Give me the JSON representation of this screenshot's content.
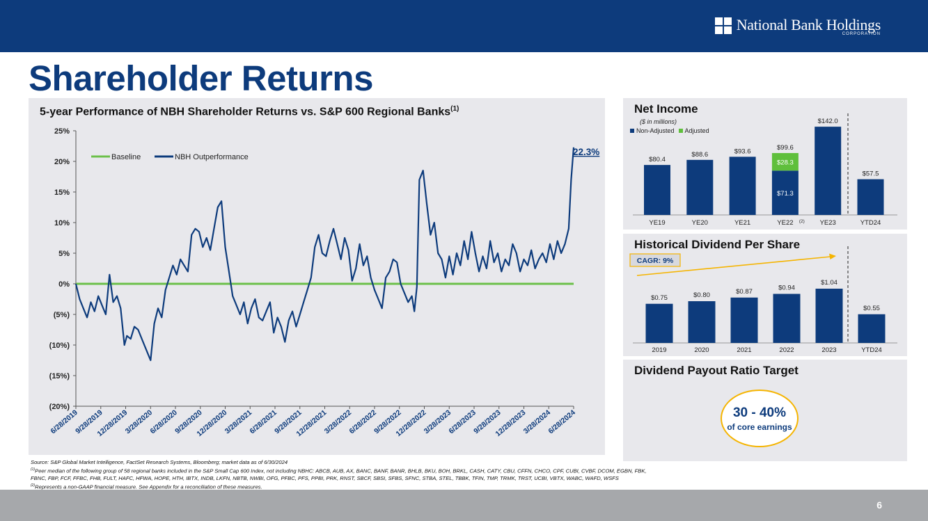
{
  "header": {
    "logo_text": "National Bank Holdings",
    "logo_sub": "CORPORATION",
    "page_title": "Shareholder Returns"
  },
  "main_panel": {
    "title": "5-year Performance of NBH Shareholder Returns vs. S&P 600 Regional Banks",
    "title_sup": "(1)"
  },
  "net_income": {
    "title": "Net Income",
    "subtitle": "($ in millions)",
    "legend_non_adjusted": "Non-Adjusted",
    "legend_adjusted": "Adjusted",
    "ye22_note": "(2)"
  },
  "dividend": {
    "title": "Historical Dividend Per Share",
    "cagr_label": "CAGR: 9%"
  },
  "payout": {
    "title": "Dividend Payout Ratio Target",
    "value": "30 - 40%",
    "caption": "of core earnings"
  },
  "footnotes": {
    "source": "Source: S&P Global Market Intelligence, FactSet Research Systems, Bloomberg; market data as of 6/30/2024",
    "note1_marker": "(1)",
    "note1": "Peer median of the following group of 58 regional banks included in the S&P Small Cap 600 Index, not including NBHC: ABCB, AUB, AX, BANC, BANF, BANR, BHLB, BKU, BOH, BRKL, CASH, CATY, CBU, CFFN, CHCO, CPF, CUBI, CVBF, DCOM, EGBN, FBK,",
    "note1_cont": "FBNC, FBP, FCF, FFBC, FHB, FULT, HAFC, HFWA, HOPE, HTH, IBTX, INDB, LKFN, NBTB, NWBI, OFG, PFBC, PFS, PPBI, PRK, RNST, SBCF, SBSI, SFBS, SFNC, STBA, STEL, TBBK, TFIN, TMP, TRMK, TRST, UCBI, VBTX, WABC, WAFD, WSFS",
    "note2_marker": "(2)",
    "note2": "Represents a non-GAAP financial measure.  See Appendix for a reconciliation of these measures."
  },
  "page_number": "6",
  "colors": {
    "navy": "#0d3b7c",
    "green": "#6cc04a",
    "adjusted_green": "#5fbf3c",
    "gold": "#f5b400"
  },
  "chart_data": [
    {
      "type": "line",
      "title": "5-year Performance of NBH Shareholder Returns vs. S&P 600 Regional Banks",
      "ylim": [
        -20,
        25
      ],
      "y_ticks": [
        25,
        20,
        15,
        10,
        5,
        0,
        -5,
        -10,
        -15,
        -20
      ],
      "y_tick_labels": [
        "25%",
        "20%",
        "15%",
        "10%",
        "5%",
        "0%",
        "(5%)",
        "(10%)",
        "(15%)",
        "(20%)"
      ],
      "x_tick_labels": [
        "6/28/2019",
        "9/28/2019",
        "12/28/2019",
        "3/28/2020",
        "6/28/2020",
        "9/28/2020",
        "12/28/2020",
        "3/28/2021",
        "6/28/2021",
        "9/28/2021",
        "12/28/2021",
        "3/28/2022",
        "6/28/2022",
        "9/28/2022",
        "12/28/2022",
        "3/28/2023",
        "6/28/2023",
        "9/28/2023",
        "12/28/2023",
        "3/28/2024",
        "6/28/2024"
      ],
      "end_label": "22.3%",
      "series": [
        {
          "name": "Baseline",
          "color": "#6cc04a",
          "x": [
            0,
            20
          ],
          "values": [
            0,
            0
          ]
        },
        {
          "name": "NBH Outperformance",
          "color": "#0d3b7c",
          "x": [
            0,
            0.15,
            0.3,
            0.45,
            0.6,
            0.75,
            0.9,
            1.05,
            1.2,
            1.35,
            1.5,
            1.65,
            1.8,
            1.95,
            2.05,
            2.2,
            2.35,
            2.5,
            2.7,
            2.85,
            3.0,
            3.15,
            3.3,
            3.45,
            3.6,
            3.75,
            3.9,
            4.05,
            4.2,
            4.35,
            4.5,
            4.65,
            4.8,
            4.95,
            5.1,
            5.25,
            5.4,
            5.55,
            5.7,
            5.85,
            6.0,
            6.15,
            6.3,
            6.45,
            6.6,
            6.75,
            6.9,
            7.05,
            7.2,
            7.35,
            7.5,
            7.65,
            7.8,
            7.95,
            8.1,
            8.25,
            8.4,
            8.55,
            8.7,
            8.85,
            9.0,
            9.15,
            9.3,
            9.45,
            9.6,
            9.75,
            9.9,
            10.05,
            10.2,
            10.35,
            10.5,
            10.65,
            10.8,
            10.95,
            11.1,
            11.25,
            11.4,
            11.55,
            11.7,
            11.85,
            12.0,
            12.15,
            12.3,
            12.45,
            12.6,
            12.75,
            12.9,
            13.05,
            13.2,
            13.35,
            13.5,
            13.6,
            13.7,
            13.8,
            13.95,
            14.1,
            14.25,
            14.4,
            14.55,
            14.7,
            14.85,
            15.0,
            15.15,
            15.3,
            15.45,
            15.6,
            15.75,
            15.9,
            16.05,
            16.2,
            16.35,
            16.5,
            16.65,
            16.8,
            16.95,
            17.1,
            17.25,
            17.4,
            17.55,
            17.7,
            17.85,
            18.0,
            18.15,
            18.3,
            18.45,
            18.6,
            18.75,
            18.9,
            19.05,
            19.2,
            19.35,
            19.5,
            19.65,
            19.8,
            19.9,
            20.0
          ],
          "values": [
            0.0,
            -2.5,
            -4.0,
            -5.5,
            -3.0,
            -4.5,
            -2.0,
            -3.5,
            -5.0,
            1.5,
            -3.0,
            -2.0,
            -4.0,
            -10.0,
            -8.5,
            -9.0,
            -7.0,
            -7.5,
            -9.5,
            -11.0,
            -12.5,
            -6.5,
            -4.0,
            -5.5,
            -1.0,
            1.0,
            3.0,
            1.5,
            4.0,
            3.0,
            2.0,
            8.0,
            9.0,
            8.5,
            6.0,
            7.5,
            5.5,
            9.0,
            12.5,
            13.5,
            6.0,
            2.0,
            -2.0,
            -3.5,
            -5.0,
            -3.0,
            -6.5,
            -4.0,
            -2.5,
            -5.5,
            -6.0,
            -4.5,
            -3.0,
            -8.0,
            -5.5,
            -7.0,
            -9.5,
            -6.0,
            -4.5,
            -7.0,
            -5.0,
            -3.0,
            -1.0,
            1.0,
            6.0,
            8.0,
            5.0,
            4.5,
            7.0,
            9.0,
            6.5,
            4.0,
            7.5,
            5.5,
            0.5,
            2.5,
            6.5,
            3.0,
            4.5,
            1.0,
            -1.0,
            -2.5,
            -4.0,
            1.0,
            2.0,
            4.0,
            3.5,
            0.0,
            -1.5,
            -3.0,
            -2.0,
            -4.5,
            -0.5,
            17.0,
            18.5,
            13.0,
            8.0,
            10.0,
            5.0,
            4.0,
            1.0,
            4.5,
            1.5,
            5.0,
            3.0,
            7.0,
            4.0,
            8.5,
            5.0,
            2.0,
            4.5,
            2.5,
            7.0,
            3.5,
            5.0,
            2.0,
            4.0,
            3.0,
            6.5,
            5.0,
            2.0,
            4.0,
            3.0,
            5.5,
            2.5,
            4.0,
            5.0,
            3.5,
            6.5,
            4.0,
            7.0,
            5.0,
            6.5,
            9.0,
            17.0,
            22.3
          ]
        }
      ]
    },
    {
      "type": "bar",
      "title": "Net Income",
      "categories": [
        "YE19",
        "YE20",
        "YE21",
        "YE22",
        "YE23",
        "YTD24"
      ],
      "series": [
        {
          "name": "Non-Adjusted",
          "color": "#0d3b7c",
          "values": [
            80.4,
            88.6,
            93.6,
            71.3,
            142.0,
            57.5
          ]
        },
        {
          "name": "Adjusted",
          "color": "#5fbf3c",
          "values": [
            0,
            0,
            0,
            28.3,
            0,
            0
          ]
        }
      ],
      "labels": [
        "$80.4",
        "$88.6",
        "$93.6",
        "$99.6",
        "$142.0",
        "$57.5"
      ],
      "ye22_inner_labels": [
        "$71.3",
        "$28.3"
      ],
      "ylim": [
        0,
        150
      ]
    },
    {
      "type": "bar",
      "title": "Historical Dividend Per Share",
      "categories": [
        "2019",
        "2020",
        "2021",
        "2022",
        "2023",
        "YTD24"
      ],
      "values": [
        0.75,
        0.8,
        0.87,
        0.94,
        1.04,
        0.55
      ],
      "labels": [
        "$0.75",
        "$0.80",
        "$0.87",
        "$0.94",
        "$1.04",
        "$0.55"
      ],
      "ylim": [
        0,
        1.2
      ]
    }
  ]
}
